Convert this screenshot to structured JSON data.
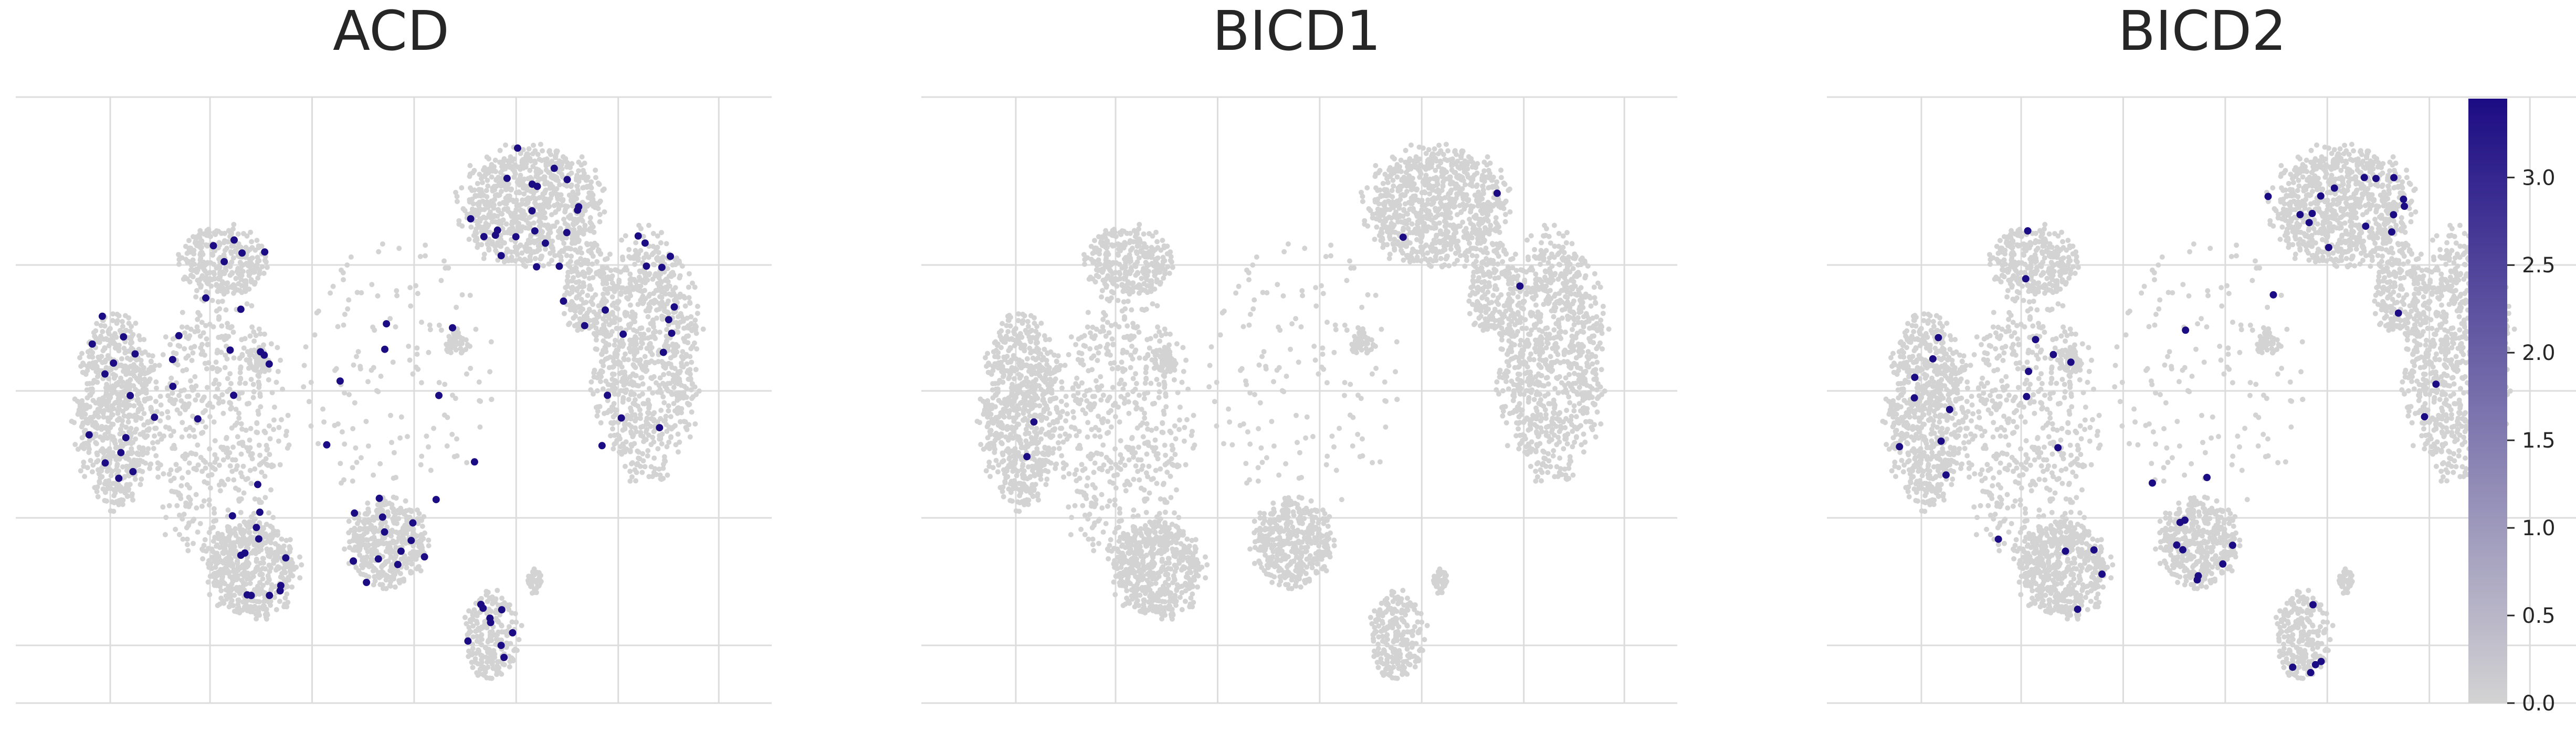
{
  "chart_data": {
    "type": "scatter",
    "panels": [
      {
        "title": "ACD",
        "highlighted_cells": 110
      },
      {
        "title": "BICD1",
        "highlighted_cells": 5
      },
      {
        "title": "BICD2",
        "highlighted_cells": 60
      }
    ],
    "embedding": "2D cell embedding; axes without tick labels; grid on",
    "colorbar": {
      "range": [
        0.0,
        3.45
      ],
      "ticks": [
        "0.0",
        "0.5",
        "1.0",
        "1.5",
        "2.0",
        "2.5",
        "3.0"
      ],
      "tick_values": [
        0.0,
        0.5,
        1.0,
        1.5,
        2.0,
        2.5,
        3.0
      ],
      "color_low": "#d3d3d3",
      "color_high": "#1c0c84"
    },
    "grid": true,
    "legend": "colorbar right"
  },
  "colors": {
    "background": "#ffffff",
    "grid": "#dcdcdc",
    "point_default": "#d3d3d3",
    "point_high": "#1c0c84",
    "text": "#262626"
  }
}
